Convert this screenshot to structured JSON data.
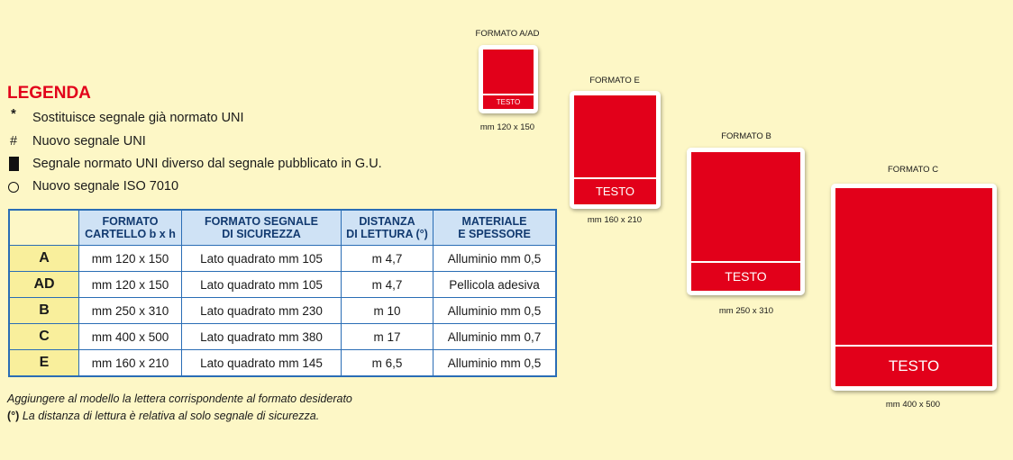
{
  "legend": {
    "title": "LEGENDA",
    "items": [
      {
        "symbol": "*",
        "text": "Sostituisce segnale già normato UNI"
      },
      {
        "symbol": "#",
        "text": "Nuovo segnale UNI"
      },
      {
        "text": "Segnale normato UNI diverso dal segnale pubblicato in G.U."
      },
      {
        "text": "Nuovo segnale ISO 7010"
      }
    ]
  },
  "table": {
    "headers": [
      [
        "FORMATO",
        "CARTELLO b x h"
      ],
      [
        "FORMATO SEGNALE",
        "DI SICUREZZA"
      ],
      [
        "DISTANZA",
        "DI LETTURA (°)"
      ],
      [
        "MATERIALE",
        "E SPESSORE"
      ]
    ],
    "rows": [
      [
        "A",
        "mm 120 x 150",
        "Lato quadrato mm 105",
        "m 4,7",
        "Alluminio mm 0,5"
      ],
      [
        "AD",
        "mm 120 x 150",
        "Lato quadrato mm 105",
        "m 4,7",
        "Pellicola adesiva"
      ],
      [
        "B",
        "mm 250 x 310",
        "Lato quadrato mm 230",
        "m 10",
        "Alluminio mm 0,5"
      ],
      [
        "C",
        "mm 400 x 500",
        "Lato quadrato mm 380",
        "m 17",
        "Alluminio mm 0,7"
      ],
      [
        "E",
        "mm 160 x 210",
        "Lato quadrato mm 145",
        "m 6,5",
        "Alluminio mm 0,5"
      ]
    ]
  },
  "notes": {
    "line1": "Aggiungere al modello la lettera corrispondente al formato desiderato",
    "line2_prefix": "(°)",
    "line2": "La distanza di lettura è relativa al solo segnale di sicurezza."
  },
  "formats": [
    {
      "label": "FORMATO A/AD",
      "text": "TESTO",
      "size": "mm 120 x 150"
    },
    {
      "label": "FORMATO E",
      "text": "TESTO",
      "size": "mm 160 x 210"
    },
    {
      "label": "FORMATO B",
      "text": "TESTO",
      "size": "mm 250 x 310"
    },
    {
      "label": "FORMATO C",
      "text": "TESTO",
      "size": "mm 400 x 500"
    }
  ]
}
